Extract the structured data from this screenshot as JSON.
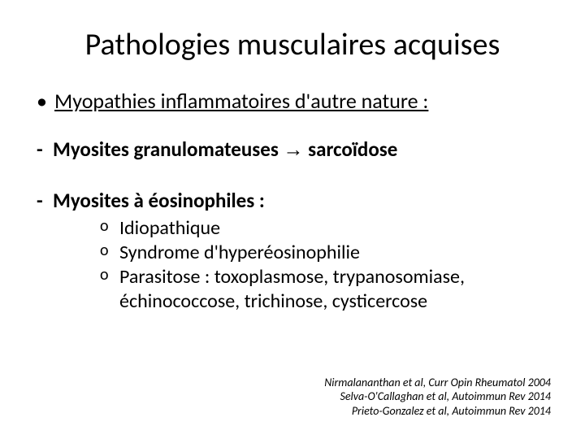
{
  "slide": {
    "title": "Pathologies musculaires acquises",
    "section_heading": "Myopathies inflammatoires d'autre nature :",
    "item1_pre": "Myosites granulomateuses ",
    "item1_arrow": "→",
    "item1_post": " sarcoïdose",
    "item2": "Myosites à éosinophiles :",
    "sub": {
      "a": "Idiopathique",
      "b": "Syndrome d'hyperéosinophilie",
      "c": "Parasitose : toxoplasmose, trypanosomiase, échinococcose, trichinose, cysticercose"
    },
    "refs": {
      "r1": "Nirmalananthan et al, Curr Opin Rheumatol 2004",
      "r2": "Selva-O'Callaghan et al, Autoimmun Rev 2014",
      "r3": "Prieto-Gonzalez et al, Autoimmun Rev 2014"
    }
  },
  "styling": {
    "background_color": "#ffffff",
    "text_color": "#000000",
    "title_fontsize": 38,
    "body_fontsize": 25,
    "sub_fontsize": 24,
    "ref_fontsize": 14,
    "font_family": "Calibri",
    "slide_width": 720,
    "slide_height": 540
  }
}
